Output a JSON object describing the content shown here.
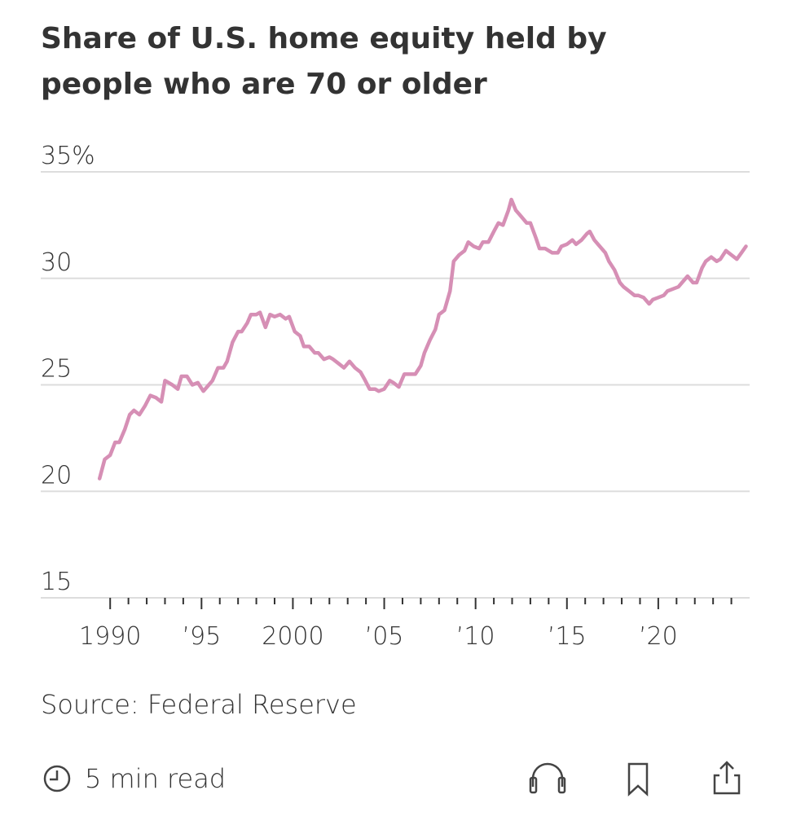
{
  "chart_data": {
    "type": "line",
    "title": "Share of U.S. home equity held by people who are 70 or older",
    "source": "Source: Federal Reserve",
    "color": "#d68fb5",
    "grid": true,
    "xlim": [
      1986.2,
      2025
    ],
    "ylim": [
      15,
      35
    ],
    "yticks": [
      15,
      20,
      25,
      30,
      {
        "value": 35,
        "label": "35%"
      }
    ],
    "xticks": [
      {
        "value": 1990,
        "label": "1990"
      },
      {
        "value": 1995,
        "label": "’95"
      },
      {
        "value": 2000,
        "label": "2000"
      },
      {
        "value": 2005,
        "label": "’05"
      },
      {
        "value": 2010,
        "label": "’10"
      },
      {
        "value": 2015,
        "label": "’15"
      },
      {
        "value": 2020,
        "label": "’20"
      }
    ],
    "xminorticks": [
      1991,
      1992,
      1993,
      1994,
      1996,
      1997,
      1998,
      1999,
      2001,
      2002,
      2003,
      2004,
      2006,
      2007,
      2008,
      2009,
      2011,
      2012,
      2013,
      2014,
      2016,
      2017,
      2018,
      2019,
      2021,
      2022,
      2023,
      2024
    ],
    "x": [
      1989.42,
      1989.7,
      1990.0,
      1990.27,
      1990.5,
      1990.8,
      1991.07,
      1991.3,
      1991.6,
      1991.9,
      1992.2,
      1992.5,
      1992.8,
      1993.0,
      1993.4,
      1993.7,
      1993.9,
      1994.2,
      1994.5,
      1994.8,
      1995.1,
      1995.4,
      1995.6,
      1995.9,
      1996.2,
      1996.4,
      1996.7,
      1997.0,
      1997.2,
      1997.5,
      1997.7,
      1998.0,
      1998.2,
      1998.5,
      1998.75,
      1999.0,
      1999.3,
      1999.6,
      1999.8,
      2000.1,
      2000.4,
      2000.6,
      2000.9,
      2001.2,
      2001.4,
      2001.7,
      2002.0,
      2002.2,
      2002.5,
      2002.8,
      2003.1,
      2003.4,
      2003.7,
      2003.9,
      2004.2,
      2004.5,
      2004.7,
      2005.0,
      2005.3,
      2005.5,
      2005.8,
      2006.1,
      2006.3,
      2006.7,
      2007.0,
      2007.2,
      2007.5,
      2007.8,
      2008.0,
      2008.3,
      2008.6,
      2008.8,
      2009.1,
      2009.4,
      2009.6,
      2009.9,
      2010.2,
      2010.4,
      2010.7,
      2011.0,
      2011.25,
      2011.5,
      2011.8,
      2011.96,
      2012.2,
      2012.5,
      2012.8,
      2013.0,
      2013.3,
      2013.5,
      2013.8,
      2014.2,
      2014.5,
      2014.7,
      2015.0,
      2015.3,
      2015.5,
      2015.8,
      2016.1,
      2016.25,
      2016.5,
      2016.8,
      2017.1,
      2017.3,
      2017.6,
      2017.9,
      2018.1,
      2018.4,
      2018.7,
      2018.9,
      2019.2,
      2019.5,
      2019.7,
      2020.0,
      2020.3,
      2020.5,
      2020.8,
      2021.1,
      2021.3,
      2021.6,
      2021.9,
      2022.1,
      2022.4,
      2022.6,
      2022.9,
      2023.2,
      2023.4,
      2023.7,
      2024.0,
      2024.3,
      2024.55,
      2024.8
    ],
    "values": [
      20.6,
      21.5,
      21.7,
      22.3,
      22.3,
      22.9,
      23.6,
      23.8,
      23.6,
      24.0,
      24.5,
      24.4,
      24.2,
      25.2,
      25.0,
      24.8,
      25.4,
      25.4,
      25.0,
      25.1,
      24.7,
      25.0,
      25.2,
      25.8,
      25.8,
      26.1,
      27.0,
      27.5,
      27.5,
      27.9,
      28.3,
      28.3,
      28.4,
      27.7,
      28.3,
      28.2,
      28.3,
      28.1,
      28.2,
      27.5,
      27.3,
      26.8,
      26.8,
      26.5,
      26.5,
      26.2,
      26.3,
      26.2,
      26.0,
      25.8,
      26.1,
      25.8,
      25.6,
      25.3,
      24.8,
      24.8,
      24.7,
      24.8,
      25.2,
      25.1,
      24.9,
      25.5,
      25.5,
      25.5,
      25.9,
      26.5,
      27.1,
      27.6,
      28.3,
      28.5,
      29.4,
      30.8,
      31.1,
      31.3,
      31.7,
      31.5,
      31.4,
      31.7,
      31.7,
      32.2,
      32.6,
      32.5,
      33.2,
      33.7,
      33.2,
      32.9,
      32.6,
      32.6,
      31.9,
      31.4,
      31.4,
      31.2,
      31.2,
      31.5,
      31.6,
      31.8,
      31.6,
      31.8,
      32.1,
      32.2,
      31.8,
      31.5,
      31.2,
      30.8,
      30.4,
      29.8,
      29.6,
      29.4,
      29.2,
      29.2,
      29.1,
      28.8,
      29.0,
      29.1,
      29.2,
      29.4,
      29.5,
      29.6,
      29.8,
      30.1,
      29.8,
      29.8,
      30.5,
      30.8,
      31.0,
      30.8,
      30.9,
      31.3,
      31.1,
      30.9,
      31.2,
      31.5
    ]
  },
  "footer": {
    "read_time": "5 min read"
  }
}
